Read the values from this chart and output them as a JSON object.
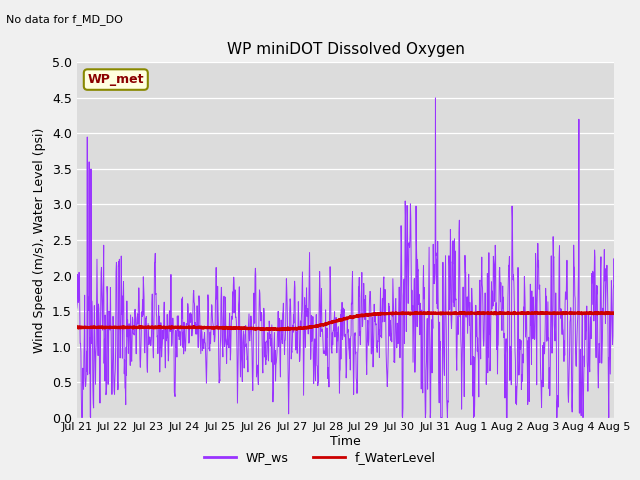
{
  "title": "WP miniDOT Dissolved Oxygen",
  "top_left_text": "No data for f_MD_DO",
  "ylabel": "Wind Speed (m/s), Water Level (psi)",
  "xlabel": "Time",
  "ylim": [
    0.0,
    5.0
  ],
  "yticks": [
    0.0,
    0.5,
    1.0,
    1.5,
    2.0,
    2.5,
    3.0,
    3.5,
    4.0,
    4.5,
    5.0
  ],
  "xtick_labels": [
    "Jul 21",
    "Jul 22",
    "Jul 23",
    "Jul 24",
    "Jul 25",
    "Jul 26",
    "Jul 27",
    "Jul 28",
    "Jul 29",
    "Jul 30",
    "Jul 31",
    "Aug 1",
    "Aug 2",
    "Aug 3",
    "Aug 4",
    "Aug 5"
  ],
  "wp_ws_color": "#9933ff",
  "f_waterlevel_color": "#cc0000",
  "legend_labels": [
    "WP_ws",
    "f_WaterLevel"
  ],
  "annotation_label": "WP_met",
  "bg_color": "#dcdcdc",
  "plot_bg_color": "#dcdcdc",
  "fig_bg_color": "#f0f0f0",
  "n_days": 15,
  "n_points": 1440
}
